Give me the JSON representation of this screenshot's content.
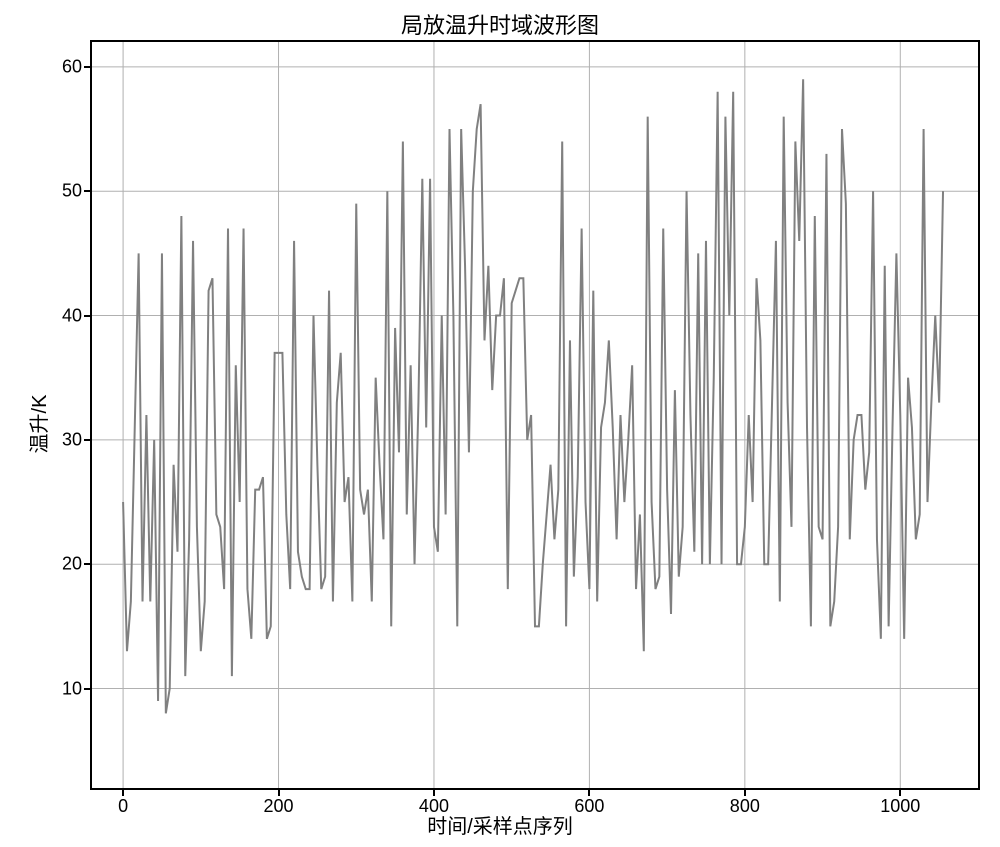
{
  "chart": {
    "type": "line",
    "title": "局放温升时域波形图",
    "title_fontsize": 22,
    "xlabel": "时间/采样点序列",
    "ylabel": "温升/K",
    "label_fontsize": 20,
    "xlim": [
      -40,
      1100
    ],
    "ylim": [
      2,
      62
    ],
    "xtick_step": 200,
    "xticks": [
      0,
      200,
      400,
      600,
      800,
      1000
    ],
    "yticks": [
      10,
      20,
      30,
      40,
      50,
      60
    ],
    "tick_fontsize": 18,
    "background_color": "#ffffff",
    "grid_color": "#b0b0b0",
    "grid_width": 1,
    "border_color": "#000000",
    "border_width": 2,
    "line_color": "#808080",
    "line_width": 2,
    "x_step": 5,
    "values": [
      25,
      13,
      17,
      31,
      45,
      17,
      32,
      17,
      30,
      9,
      45,
      8,
      10,
      28,
      21,
      48,
      11,
      22,
      46,
      23,
      13,
      17,
      42,
      43,
      24,
      23,
      18,
      47,
      11,
      36,
      25,
      47,
      18,
      14,
      26,
      26,
      27,
      14,
      15,
      37,
      37,
      37,
      24,
      18,
      46,
      21,
      19,
      18,
      18,
      40,
      28,
      18,
      19,
      42,
      17,
      33,
      37,
      25,
      27,
      17,
      49,
      26,
      24,
      26,
      17,
      35,
      28,
      22,
      50,
      15,
      39,
      29,
      54,
      24,
      36,
      20,
      33,
      51,
      31,
      51,
      23,
      21,
      40,
      24,
      55,
      40,
      15,
      55,
      44,
      29,
      50,
      55,
      57,
      38,
      44,
      34,
      40,
      40,
      43,
      18,
      41,
      42,
      43,
      43,
      30,
      32,
      15,
      15,
      20,
      24,
      28,
      22,
      26,
      54,
      15,
      38,
      19,
      27,
      47,
      25,
      18,
      42,
      17,
      31,
      33,
      38,
      31,
      22,
      32,
      25,
      30,
      36,
      18,
      24,
      13,
      56,
      25,
      18,
      19,
      47,
      26,
      16,
      34,
      19,
      23,
      50,
      32,
      21,
      45,
      20,
      46,
      20,
      35,
      58,
      20,
      56,
      40,
      58,
      20,
      20,
      23,
      32,
      25,
      43,
      38,
      20,
      20,
      33,
      46,
      17,
      56,
      33,
      23,
      54,
      46,
      59,
      31,
      15,
      48,
      23,
      22,
      53,
      15,
      17,
      23,
      55,
      49,
      22,
      30,
      32,
      32,
      26,
      29,
      50,
      22,
      14,
      44,
      15,
      31,
      45,
      32,
      14,
      35,
      31,
      22,
      24,
      55,
      25,
      33,
      40,
      33,
      50
    ]
  }
}
